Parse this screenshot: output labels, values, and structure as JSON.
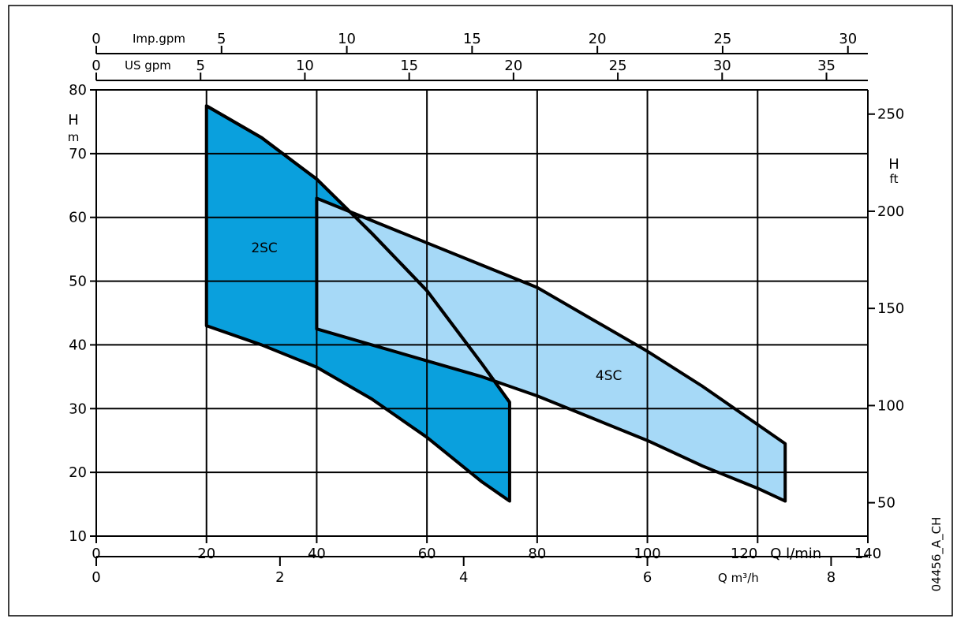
{
  "figure_id": "04456_A_CH",
  "chart_data": {
    "type": "area",
    "title": "",
    "x": {
      "label": "Q l/min",
      "range": [
        0,
        140
      ],
      "ticks": [
        0,
        20,
        40,
        60,
        80,
        100,
        120,
        140
      ]
    },
    "y": {
      "label": "H m",
      "label_top": "H",
      "label_bottom": "m",
      "range": [
        10,
        80
      ],
      "ticks": [
        10,
        20,
        30,
        40,
        50,
        60,
        70,
        80
      ]
    },
    "y_right": {
      "label_top": "H",
      "label_bottom": "ft",
      "ticks": [
        {
          "value": 50,
          "text": "50"
        },
        {
          "value": 100,
          "text": "100"
        },
        {
          "value": 150,
          "text": "150"
        },
        {
          "value": 200,
          "text": "200"
        },
        {
          "value": 250,
          "text": "250"
        }
      ]
    },
    "x_top_us": {
      "label": "US gpm",
      "ticks": [
        {
          "value": 0,
          "text": "0"
        },
        {
          "value": 5,
          "text": "5"
        },
        {
          "value": 10,
          "text": "10"
        },
        {
          "value": 15,
          "text": "15"
        },
        {
          "value": 20,
          "text": "20"
        },
        {
          "value": 25,
          "text": "25"
        },
        {
          "value": 30,
          "text": "30"
        },
        {
          "value": 35,
          "text": "35"
        }
      ]
    },
    "x_top_imp": {
      "label": "Imp.gpm",
      "ticks": [
        {
          "value": 0,
          "text": "0"
        },
        {
          "value": 5,
          "text": "5"
        },
        {
          "value": 10,
          "text": "10"
        },
        {
          "value": 15,
          "text": "15"
        },
        {
          "value": 20,
          "text": "20"
        },
        {
          "value": 25,
          "text": "25"
        },
        {
          "value": 30,
          "text": "30"
        }
      ]
    },
    "x_bottom_m3h": {
      "label": "Q m³/h",
      "ticks": [
        {
          "value": 0,
          "text": "0"
        },
        {
          "value": 2,
          "text": "2"
        },
        {
          "value": 4,
          "text": "4"
        },
        {
          "value": 6,
          "text": "6"
        },
        {
          "value": 8,
          "text": "8"
        }
      ]
    },
    "grid": true,
    "series": [
      {
        "name": "2SC",
        "color": "#0aa0dd",
        "upper": [
          [
            20,
            77.5
          ],
          [
            30,
            72.5
          ],
          [
            40,
            66
          ],
          [
            50,
            57.5
          ],
          [
            60,
            48.5
          ],
          [
            70,
            37
          ],
          [
            75,
            31
          ]
        ],
        "lower": [
          [
            20,
            43
          ],
          [
            30,
            40
          ],
          [
            40,
            36.5
          ],
          [
            50,
            31.5
          ],
          [
            60,
            25.5
          ],
          [
            70,
            18.5
          ],
          [
            75,
            15.5
          ]
        ]
      },
      {
        "name": "4SC",
        "color": "#a6d9f7",
        "upper": [
          [
            40,
            63
          ],
          [
            50,
            59.5
          ],
          [
            60,
            56
          ],
          [
            70,
            52.5
          ],
          [
            80,
            49
          ],
          [
            90,
            44
          ],
          [
            100,
            39
          ],
          [
            110,
            33.5
          ],
          [
            120,
            27.5
          ],
          [
            125,
            24.5
          ]
        ],
        "lower": [
          [
            40,
            42.5
          ],
          [
            50,
            40
          ],
          [
            60,
            37.5
          ],
          [
            70,
            35
          ],
          [
            80,
            32
          ],
          [
            90,
            28.5
          ],
          [
            100,
            25
          ],
          [
            110,
            21
          ],
          [
            120,
            17.5
          ],
          [
            125,
            15.5
          ]
        ]
      }
    ]
  }
}
